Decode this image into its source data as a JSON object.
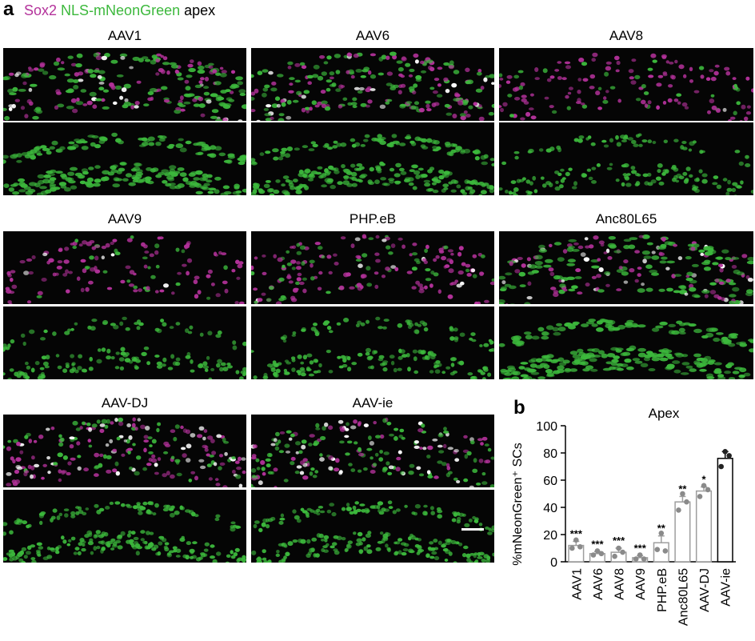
{
  "figure": {
    "panel_a_letter": "a",
    "panel_b_letter": "b",
    "legend": {
      "sox2": "Sox2",
      "neon": "NLS-mNeonGreen",
      "region": "apex"
    },
    "tiles": [
      {
        "label": "AAV1"
      },
      {
        "label": "AAV6"
      },
      {
        "label": "AAV8"
      },
      {
        "label": "AAV9"
      },
      {
        "label": "PHP.eB"
      },
      {
        "label": "Anc80L65"
      },
      {
        "label": "AAV-DJ"
      },
      {
        "label": "AAV-ie"
      }
    ],
    "colors": {
      "sox2": "#b4329b",
      "neon": "#3cb83c",
      "merge": "#ffffff",
      "bar_gray": "#9e9e9e",
      "bar_black": "#000000"
    }
  },
  "chart_data": {
    "type": "bar",
    "title": "Apex",
    "ylabel": "%mNeonGreen⁺ SCs",
    "ylim": [
      0,
      100
    ],
    "yticks": [
      "0",
      "20",
      "40",
      "60",
      "80",
      "100"
    ],
    "categories": [
      "AAV1",
      "AAV6",
      "AAV8",
      "AAV9",
      "PHP.eB",
      "Anc80L65",
      "AAV-DJ",
      "AAV-ie"
    ],
    "values": [
      12,
      6,
      7,
      3,
      14,
      44,
      52,
      76
    ],
    "errors": [
      3,
      1.5,
      3,
      1.5,
      5,
      4,
      3,
      5
    ],
    "points": [
      [
        10,
        16,
        11
      ],
      [
        5,
        8,
        6
      ],
      [
        4,
        10,
        7
      ],
      [
        2,
        5,
        2
      ],
      [
        9,
        21,
        8
      ],
      [
        38,
        50,
        44
      ],
      [
        48,
        56,
        53
      ],
      [
        70,
        81,
        78
      ]
    ],
    "significance": [
      "***",
      "***",
      "***",
      "***",
      "**",
      "**",
      "*",
      ""
    ]
  }
}
